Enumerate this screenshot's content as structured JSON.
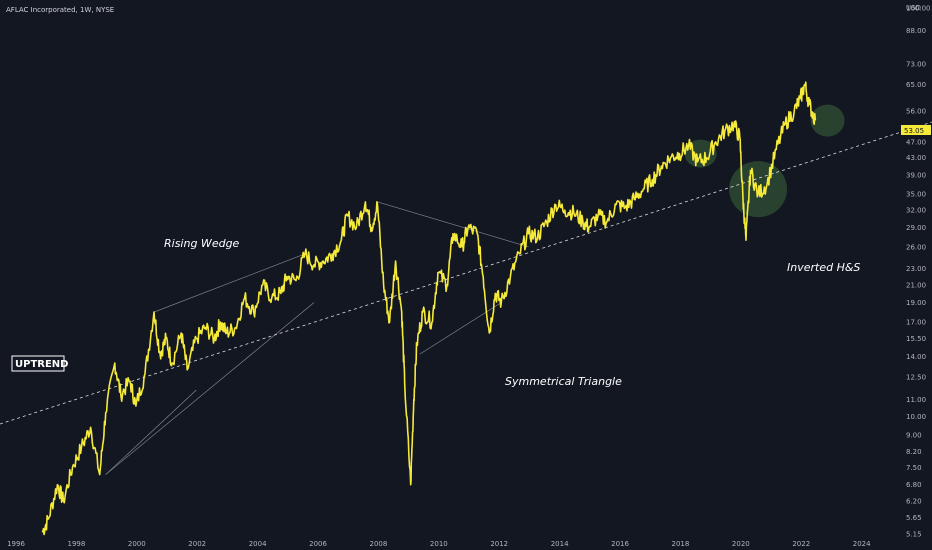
{
  "header": {
    "symbol_title": "AFLAC Incorporated, 1W, NYSE",
    "currency": "USD"
  },
  "price_tag": "53.05",
  "colors": {
    "background": "#131722",
    "price_line": "#f5e93a",
    "trendline": "#ffffff",
    "pattern_lines": "#8c8f99",
    "highlight": "#2e4a33",
    "axis_text": "#b2b5be"
  },
  "chart_data": {
    "type": "line",
    "title": "AFLAC Incorporated, 1W, NYSE",
    "ylabel": "USD",
    "y_scale": "log",
    "ylim": [
      5.15,
      110
    ],
    "xlim": [
      1995.5,
      2025.3
    ],
    "x_ticks": [
      "1996",
      "1998",
      "2000",
      "2002",
      "2004",
      "2006",
      "2008",
      "2010",
      "2012",
      "2014",
      "2016",
      "2018",
      "2020",
      "2022",
      "2024"
    ],
    "y_ticks": [
      "100.00",
      "88.00",
      "73.00",
      "65.00",
      "56.00",
      "47.00",
      "43.00",
      "39.00",
      "35.00",
      "32.00",
      "29.00",
      "26.00",
      "23.00",
      "21.00",
      "19.00",
      "17.00",
      "15.50",
      "14.00",
      "12.50",
      "11.00",
      "10.00",
      "9.00",
      "8.20",
      "7.50",
      "6.80",
      "6.20",
      "5.65",
      "5.15"
    ],
    "series": [
      {
        "x": [
          1996.9,
          1997.1,
          1997.4,
          1997.6,
          1997.9,
          1998.2,
          1998.5,
          1998.8,
          1999.0,
          1999.3,
          1999.5,
          1999.8,
          2000.0,
          2000.3,
          2000.6,
          2000.8,
          2001.0,
          2001.2,
          2001.5,
          2001.7,
          2002.0,
          2002.3,
          2002.6,
          2002.8,
          2003.0,
          2003.3,
          2003.6,
          2003.9,
          2004.2,
          2004.5,
          2004.8,
          2005.0,
          2005.3,
          2005.6,
          2005.9,
          2006.2,
          2006.5,
          2006.8,
          2007.0,
          2007.3,
          2007.6,
          2007.8,
          2008.0,
          2008.2,
          2008.4,
          2008.6,
          2008.8,
          2008.9,
          2009.1,
          2009.2,
          2009.3,
          2009.5,
          2009.8,
          2010.0,
          2010.3,
          2010.5,
          2010.8,
          2011.0,
          2011.3,
          2011.5,
          2011.7,
          2011.9,
          2012.1,
          2012.4,
          2012.7,
          2013.0,
          2013.3,
          2013.6,
          2013.9,
          2014.2,
          2014.5,
          2014.8,
          2015.0,
          2015.3,
          2015.6,
          2015.9,
          2016.2,
          2016.5,
          2016.8,
          2017.1,
          2017.4,
          2017.7,
          2018.0,
          2018.3,
          2018.6,
          2018.9,
          2019.2,
          2019.5,
          2019.8,
          2020.0,
          2020.1,
          2020.2,
          2020.35,
          2020.6,
          2020.9,
          2021.2,
          2021.5,
          2021.8,
          2022.0,
          2022.15,
          2022.3,
          2022.5
        ],
        "y": [
          5.2,
          5.6,
          6.8,
          6.2,
          7.5,
          8.4,
          9.4,
          7.2,
          10.2,
          13.5,
          11.3,
          12.2,
          10.6,
          12.7,
          18.0,
          14.2,
          15.5,
          13.5,
          16.0,
          13.0,
          15.5,
          16.5,
          15.5,
          17.0,
          16.0,
          16.5,
          19.5,
          18.0,
          21.0,
          19.5,
          20.0,
          22.0,
          21.5,
          25.0,
          23.5,
          24.0,
          25.0,
          27.0,
          31.0,
          29.0,
          33.5,
          29.0,
          33.0,
          21.0,
          17.0,
          24.0,
          18.0,
          12.0,
          6.8,
          11.0,
          15.0,
          18.0,
          17.0,
          22.5,
          21.0,
          28.0,
          26.0,
          29.0,
          28.0,
          22.0,
          16.0,
          20.0,
          19.0,
          22.0,
          25.0,
          28.0,
          27.5,
          30.0,
          33.0,
          32.0,
          31.5,
          30.0,
          29.0,
          31.0,
          30.0,
          33.0,
          32.5,
          34.0,
          36.0,
          38.0,
          41.0,
          43.0,
          44.0,
          46.0,
          42.0,
          43.0,
          47.0,
          50.0,
          52.0,
          48.0,
          34.0,
          27.0,
          40.0,
          35.0,
          37.0,
          45.0,
          52.0,
          56.0,
          60.0,
          65.0,
          58.0,
          53.05
        ]
      }
    ],
    "annotations": [
      "Rising Wedge",
      "Symmetrical Triangle",
      "Inverted H&S",
      "UPTREND"
    ]
  }
}
